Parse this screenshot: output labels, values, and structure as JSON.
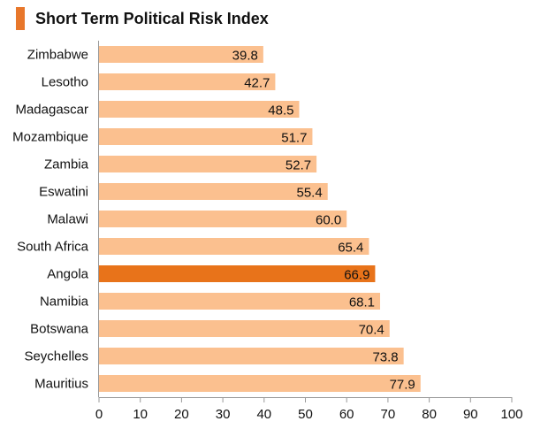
{
  "chart_data": {
    "type": "bar",
    "orientation": "horizontal",
    "title": "Short Term Political Risk Index",
    "categories": [
      "Zimbabwe",
      "Lesotho",
      "Madagascar",
      "Mozambique",
      "Zambia",
      "Eswatini",
      "Malawi",
      "South Africa",
      "Angola",
      "Namibia",
      "Botswana",
      "Seychelles",
      "Mauritius"
    ],
    "values": [
      39.8,
      42.7,
      48.5,
      51.7,
      52.7,
      55.4,
      60.0,
      65.4,
      66.9,
      68.1,
      70.4,
      73.8,
      77.9
    ],
    "value_labels": [
      "39.8",
      "42.7",
      "48.5",
      "51.7",
      "52.7",
      "55.4",
      "60.0",
      "65.4",
      "66.9",
      "68.1",
      "70.4",
      "73.8",
      "77.9"
    ],
    "highlight": "Angola",
    "xlim": [
      0,
      100
    ],
    "xticks": [
      0,
      10,
      20,
      30,
      40,
      50,
      60,
      70,
      80,
      90,
      100
    ],
    "xlabel": "",
    "ylabel": "",
    "grid": false,
    "colors": {
      "bar": "#fbc08f",
      "highlight": "#e8731a",
      "accent": "#e8772b",
      "axis": "#999999"
    }
  }
}
